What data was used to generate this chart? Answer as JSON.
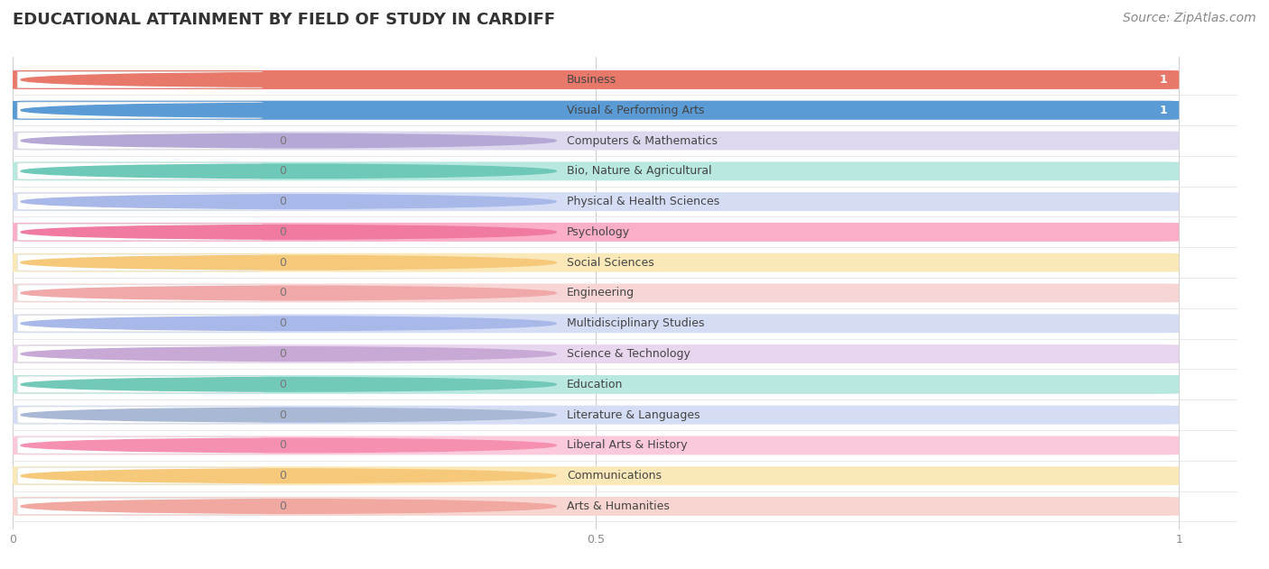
{
  "title": "EDUCATIONAL ATTAINMENT BY FIELD OF STUDY IN CARDIFF",
  "source": "Source: ZipAtlas.com",
  "categories": [
    "Business",
    "Visual & Performing Arts",
    "Computers & Mathematics",
    "Bio, Nature & Agricultural",
    "Physical & Health Sciences",
    "Psychology",
    "Social Sciences",
    "Engineering",
    "Multidisciplinary Studies",
    "Science & Technology",
    "Education",
    "Literature & Languages",
    "Liberal Arts & History",
    "Communications",
    "Arts & Humanities"
  ],
  "values": [
    1,
    1,
    0,
    0,
    0,
    0,
    0,
    0,
    0,
    0,
    0,
    0,
    0,
    0,
    0
  ],
  "bar_colors": [
    "#e8796a",
    "#5b9bd5",
    "#b5a8d5",
    "#6ec9b8",
    "#a8b8e8",
    "#f07aa0",
    "#f5c87a",
    "#f0a8a8",
    "#a8b8e8",
    "#c8a8d5",
    "#72c9b8",
    "#a8b8d5",
    "#f590b0",
    "#f5c87a",
    "#f0a8a0"
  ],
  "bar_colors_light": [
    "#f5c4be",
    "#aecded",
    "#ddd8ee",
    "#b8e8df",
    "#d5ddf5",
    "#faaec8",
    "#fae8b8",
    "#f8d5d5",
    "#d5ddf5",
    "#e8d5ee",
    "#b8e8df",
    "#d5ddf5",
    "#fcc8dc",
    "#fae8b8",
    "#f8d5d0"
  ],
  "background_color": "#ffffff",
  "bar_height": 0.62,
  "title_fontsize": 13,
  "label_fontsize": 9,
  "value_fontsize": 9,
  "source_fontsize": 10
}
